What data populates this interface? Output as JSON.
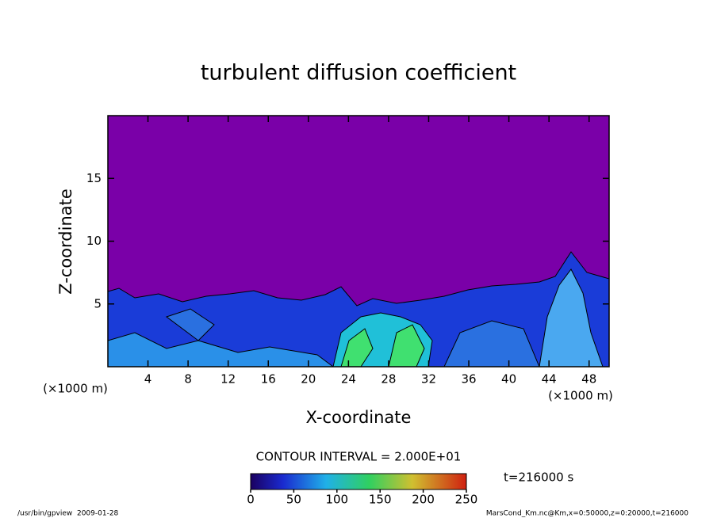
{
  "chart_data": {
    "type": "contour",
    "title": "turbulent diffusion coefficient",
    "x_label": "X-coordinate",
    "y_label": "Z-coordinate",
    "x_unit": "(×1000 m)",
    "xlim": [
      0,
      50
    ],
    "xticks": [
      4,
      8,
      12,
      16,
      20,
      24,
      28,
      32,
      36,
      40,
      44,
      48
    ],
    "ylim": [
      0,
      20
    ],
    "yticks": [
      5,
      10,
      15
    ],
    "contour_interval": "CONTOUR INTERVAL = 2.000E+01",
    "colorbar": {
      "lim": [
        0,
        250
      ],
      "ticks": [
        0,
        50,
        100,
        150,
        200,
        250
      ]
    },
    "time_label": "t=216000 s",
    "footer_left": "/usr/bin/gpview  2009-01-28",
    "footer_right": "MarsCond_Km.nc@Km,x=0:50000,z=0:20000,t=216000"
  }
}
